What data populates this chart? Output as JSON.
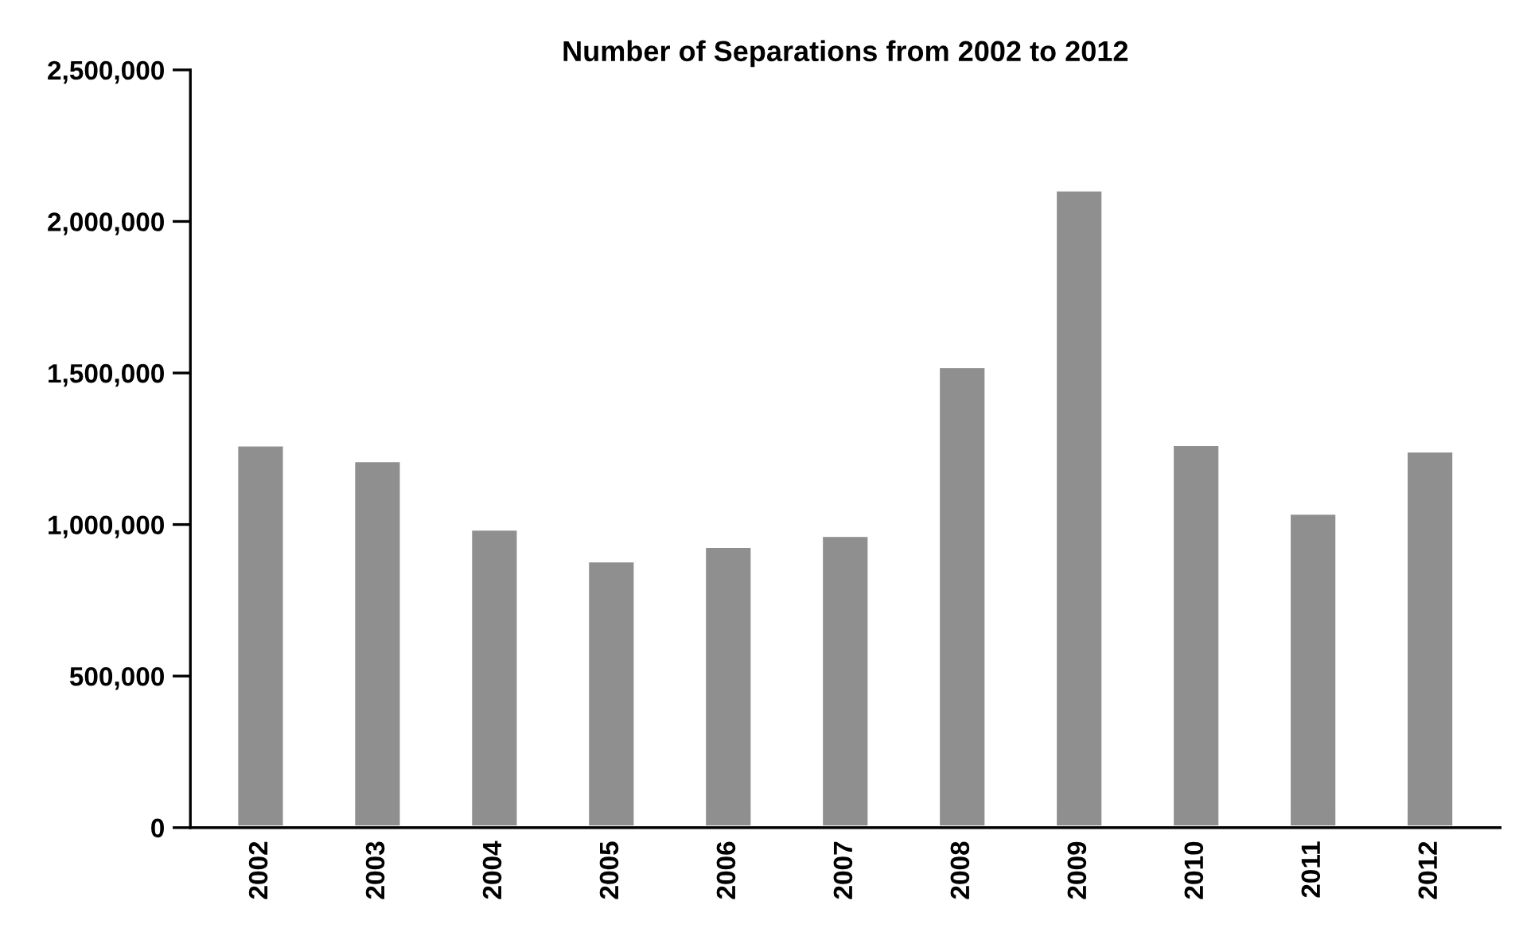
{
  "chart_data": {
    "type": "bar",
    "title": "Number of Separations from 2002 to 2012",
    "categories": [
      "2002",
      "2003",
      "2004",
      "2005",
      "2006",
      "2007",
      "2008",
      "2009",
      "2010",
      "2011",
      "2012"
    ],
    "values": [
      1265000,
      1213000,
      987000,
      882000,
      930000,
      966000,
      1523000,
      2106000,
      1266000,
      1040000,
      1245000
    ],
    "color": "#8f8f8f",
    "ylim": [
      0,
      2500000
    ],
    "yticks": [
      {
        "value": 0,
        "label": "0"
      },
      {
        "value": 500000,
        "label": "500,000"
      },
      {
        "value": 1000000,
        "label": "1,000,000"
      },
      {
        "value": 1500000,
        "label": "1,500,000"
      },
      {
        "value": 2000000,
        "label": "2,000,000"
      },
      {
        "value": 2500000,
        "label": "2,500,000"
      }
    ],
    "grid": false
  }
}
